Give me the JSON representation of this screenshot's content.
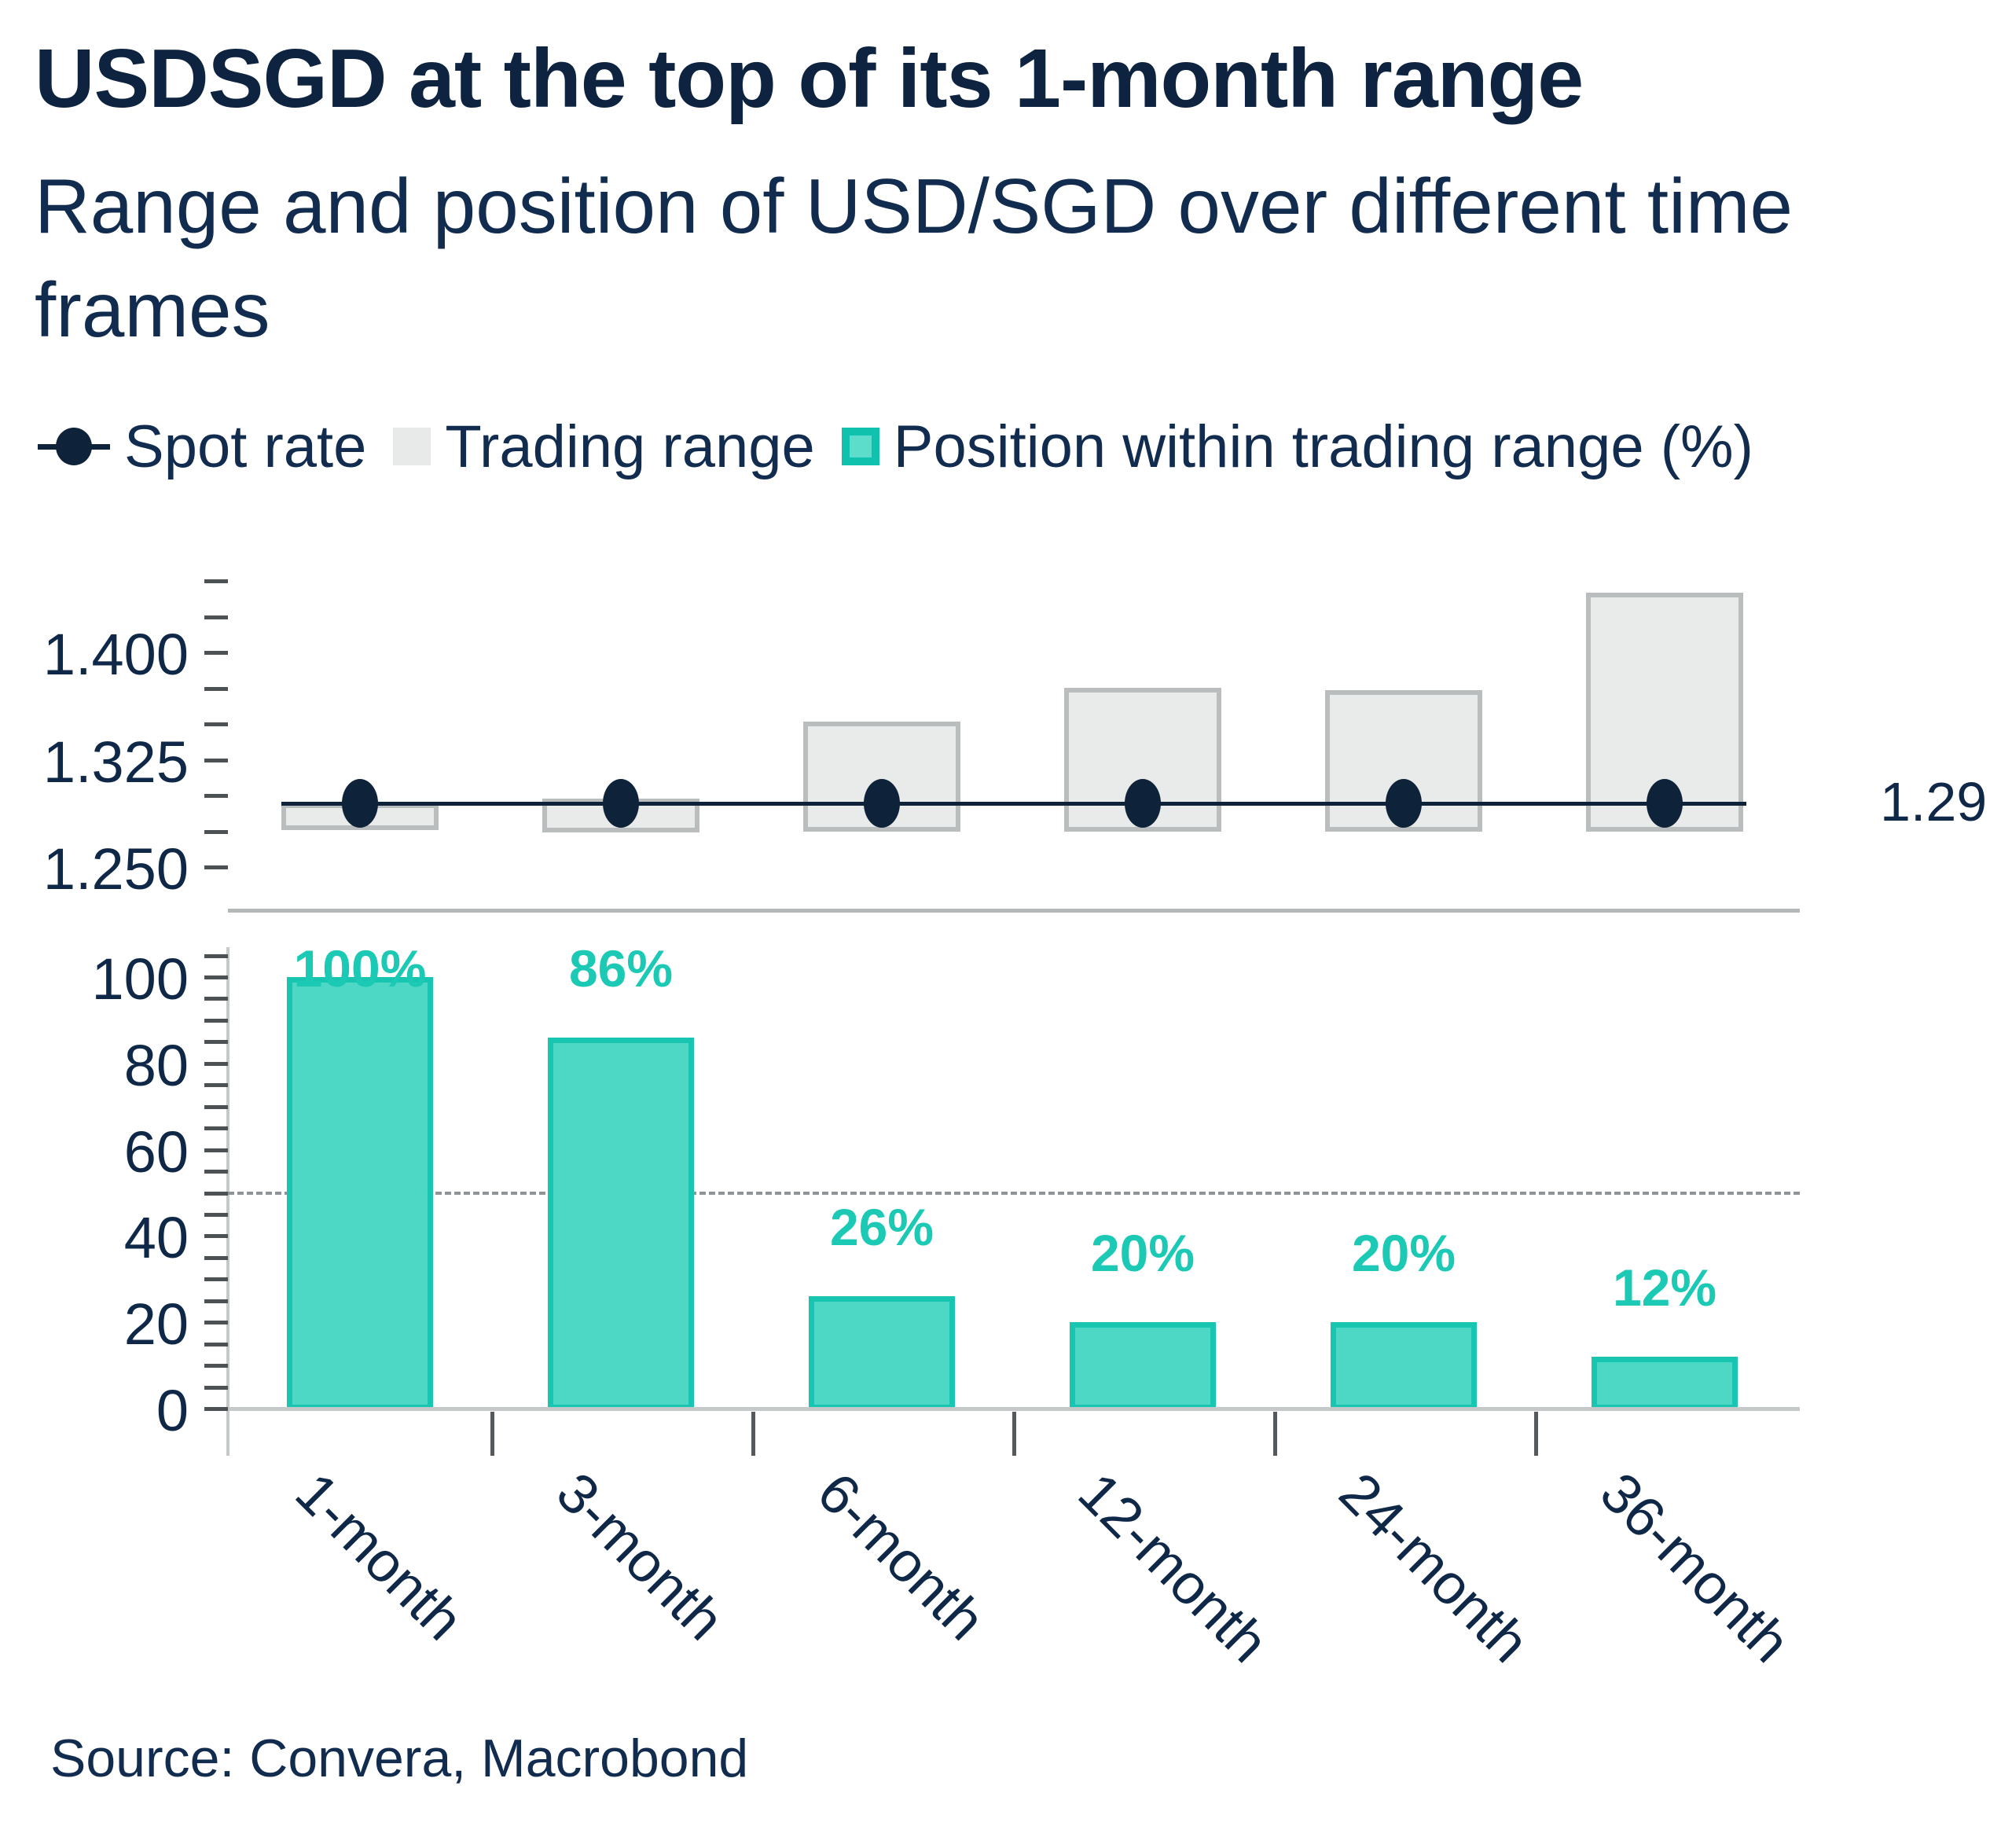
{
  "title": "USDSGD at the top of its 1-month range",
  "subtitle": {
    "text": "Range and position of USD/SGD over different time frames",
    "lines": [
      "Range and position of USD/SGD over different time",
      "frames"
    ]
  },
  "legend": {
    "spot_label": "Spot rate",
    "range_label": "Trading range",
    "position_label": "Position within trading range (%)"
  },
  "source": "Source: Convera, Macrobond",
  "colors": {
    "navy_text": "#0f2847",
    "navy_marker": "#0e2239",
    "teal_fill": "#4dd8c6",
    "teal_border": "#17c5b0",
    "teal_label": "#1bc9b4",
    "gray_box_fill": "#e9eaea",
    "gray_box_border": "#babdbd",
    "axis_gray": "#c6c9c9",
    "dash_gray": "#8f9496"
  },
  "chart_data": {
    "type": "range-and-bar-combo",
    "categories": [
      "1-month",
      "3-month",
      "6-month",
      "12-month",
      "24-month",
      "36-month"
    ],
    "top_panel": {
      "type": "range",
      "description": "Trading range boxes with spot rate line",
      "spot_rate": 1.2945,
      "spot_label": "1.29",
      "ranges": [
        {
          "low": 1.276,
          "high": 1.2945
        },
        {
          "low": 1.2744,
          "high": 1.2978
        },
        {
          "low": 1.2747,
          "high": 1.3516
        },
        {
          "low": 1.2747,
          "high": 1.3753
        },
        {
          "low": 1.2747,
          "high": 1.3736
        },
        {
          "low": 1.2747,
          "high": 1.4418
        }
      ],
      "axis": {
        "min": 1.25,
        "max": 1.45,
        "tick_step": 0.025,
        "label_values": [
          1.25,
          1.325,
          1.4
        ],
        "label_format_decimals": 3
      }
    },
    "bottom_panel": {
      "type": "bar",
      "description": "Position within trading range (%)",
      "values": [
        100,
        86,
        26,
        20,
        20,
        12
      ],
      "value_labels": [
        "100%",
        "86%",
        "26%",
        "20%",
        "20%",
        "12%"
      ],
      "axis": {
        "min": 0,
        "max": 100,
        "tick_step": 5,
        "label_step": 20
      },
      "reference_line": 50
    }
  }
}
